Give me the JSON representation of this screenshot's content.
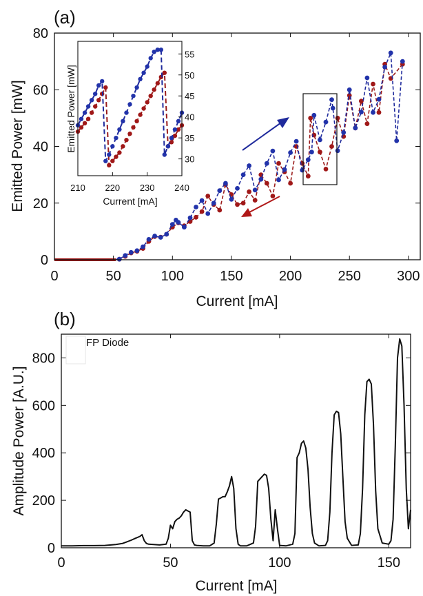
{
  "colors": {
    "up": "#1f2a9c",
    "down": "#9a1b1b",
    "dot_up": "#2233aa",
    "dot_down": "#a01818",
    "line_b": "#111111",
    "arrow_up": "#1f2a9c",
    "arrow_down": "#b01818"
  },
  "chart_data": [
    {
      "panel": "(a)",
      "type": "scatter",
      "xlabel": "Current [mA]",
      "ylabel": "Emitted Power [mW]",
      "xlim": [
        0,
        310
      ],
      "ylim": [
        0,
        80
      ],
      "xticks": [
        "0",
        "50",
        "100",
        "150",
        "200",
        "250",
        "300"
      ],
      "yticks": [
        "0",
        "20",
        "40",
        "60",
        "80"
      ],
      "series": [
        {
          "direction": "increasing current",
          "x": [
            0,
            20,
            40,
            55,
            60,
            65,
            70,
            75,
            80,
            85,
            90,
            95,
            100,
            103,
            105,
            110,
            115,
            120,
            125,
            130,
            135,
            140,
            145,
            150,
            155,
            160,
            165,
            170,
            175,
            180,
            185,
            190,
            195,
            200,
            205,
            210,
            215,
            218,
            220,
            225,
            230,
            235,
            236,
            240,
            245,
            250,
            255,
            260,
            265,
            270,
            275,
            280,
            285,
            290,
            295
          ],
          "y": [
            0,
            0,
            0,
            0.2,
            1.5,
            2.6,
            3.2,
            4.6,
            7.2,
            8.4,
            7.9,
            9.0,
            12.5,
            14.0,
            13.2,
            11.5,
            14.8,
            18.6,
            20.9,
            16.3,
            20.0,
            24.4,
            27.0,
            21.3,
            25.2,
            30.0,
            33.2,
            24.6,
            28.4,
            34.0,
            38.4,
            28.2,
            31.8,
            37.8,
            41.8,
            31.6,
            35.3,
            38.0,
            51.0,
            42.3,
            48.6,
            56.5,
            53.5,
            38.5,
            44.9,
            60.0,
            46.5,
            52.1,
            64.2,
            52.0,
            56.6,
            68.0,
            73.0,
            42.0,
            70.0
          ]
        },
        {
          "direction": "decreasing current",
          "x": [
            295,
            285,
            280,
            275,
            270,
            265,
            260,
            255,
            250,
            245,
            240,
            235,
            230,
            225,
            220,
            217,
            215,
            210,
            205,
            200,
            195,
            190,
            185,
            180,
            175,
            170,
            165,
            160,
            155,
            150,
            145,
            140,
            135,
            130,
            125,
            120,
            115,
            110,
            105,
            100,
            95,
            90,
            85,
            80,
            75,
            70,
            65,
            60,
            55,
            40,
            20,
            0
          ],
          "y": [
            69.0,
            64.0,
            69.0,
            52.0,
            62.0,
            48.0,
            56.0,
            46.5,
            58.0,
            43.5,
            50.0,
            40.0,
            32.0,
            38.0,
            44.0,
            50.0,
            29.5,
            34.0,
            40.0,
            27.0,
            31.0,
            34.0,
            22.5,
            27.0,
            30.0,
            21.0,
            24.0,
            20.0,
            19.5,
            23.0,
            26.5,
            17.5,
            19.5,
            22.5,
            17.0,
            15.0,
            13.5,
            12.0,
            13.0,
            11.5,
            9.0,
            8.0,
            8.2,
            6.5,
            4.0,
            3.0,
            2.4,
            1.2,
            0.2,
            0,
            0,
            0
          ]
        }
      ]
    },
    {
      "panel": "(a) inset",
      "type": "scatter",
      "xlabel": "Current [mA]",
      "ylabel": "Emitted Power [mW]",
      "xlim": [
        210,
        240
      ],
      "ylim": [
        26,
        58
      ],
      "xticks": [
        "210",
        "220",
        "230",
        "240"
      ],
      "yticks": [
        "30",
        "35",
        "40",
        "45",
        "50",
        "55"
      ],
      "series": [
        {
          "direction": "increasing current",
          "x": [
            210,
            211,
            212,
            213,
            214,
            215,
            216,
            217,
            218,
            219,
            220,
            221,
            222,
            223,
            224,
            225,
            226,
            227,
            228,
            229,
            230,
            231,
            232,
            233,
            234,
            235,
            236,
            237,
            238,
            239,
            240
          ],
          "y": [
            38.0,
            39.5,
            41.0,
            42.5,
            44.0,
            45.5,
            47.5,
            48.5,
            29.5,
            31.0,
            33.0,
            35.0,
            37.0,
            39.0,
            41.0,
            43.0,
            45.0,
            47.0,
            49.0,
            50.5,
            52.0,
            54.0,
            55.5,
            56.0,
            56.0,
            31.0,
            33.0,
            35.0,
            37.0,
            39.0,
            41.0
          ]
        },
        {
          "direction": "decreasing current",
          "x": [
            240,
            239,
            238,
            237,
            236,
            235,
            234,
            233,
            232,
            231,
            230,
            229,
            228,
            227,
            226,
            225,
            224,
            223,
            222,
            221,
            220,
            219,
            218,
            217,
            216,
            215,
            214,
            213,
            212,
            211,
            210
          ],
          "y": [
            38.0,
            37.0,
            35.5,
            34.0,
            33.0,
            50.5,
            49.5,
            48.0,
            46.5,
            45.0,
            43.5,
            42.0,
            40.5,
            39.0,
            37.5,
            36.0,
            34.5,
            33.0,
            31.5,
            30.5,
            29.5,
            28.5,
            47.0,
            45.5,
            44.0,
            42.5,
            41.0,
            39.5,
            38.5,
            37.5,
            36.5
          ]
        }
      ]
    },
    {
      "panel": "(b)",
      "type": "line",
      "xlabel": "Current [mA]",
      "ylabel": "Amplitude Power [A.U.]",
      "xlim": [
        0,
        160
      ],
      "ylim": [
        0,
        900
      ],
      "xticks": [
        "0",
        "50",
        "100",
        "150"
      ],
      "yticks": [
        "0",
        "200",
        "400",
        "600",
        "800"
      ],
      "legend": "FP Diode",
      "legend_position": "top-left",
      "series": [
        {
          "name": "FP Diode",
          "x": [
            0,
            5,
            10,
            15,
            20,
            25,
            28,
            30,
            32,
            34,
            36,
            37,
            38,
            39,
            40,
            45,
            48,
            49,
            50,
            51,
            52,
            53,
            54,
            55,
            56,
            57,
            58,
            59,
            60,
            61,
            62,
            65,
            68,
            70,
            71,
            72,
            73,
            74,
            75,
            76,
            77,
            78,
            79,
            80,
            81,
            82,
            85,
            88,
            89,
            90,
            91,
            92,
            93,
            94,
            95,
            96,
            97,
            98,
            99,
            100,
            103,
            106,
            107,
            108,
            109,
            110,
            111,
            112,
            113,
            114,
            115,
            116,
            118,
            121,
            122,
            123,
            124,
            125,
            126,
            127,
            128,
            129,
            130,
            131,
            133,
            136,
            137,
            138,
            139,
            140,
            141,
            142,
            143,
            144,
            145,
            147,
            150,
            151,
            152,
            153,
            154,
            155,
            156,
            157,
            158,
            159,
            160
          ],
          "y": [
            8,
            8,
            9,
            9,
            10,
            14,
            18,
            25,
            32,
            40,
            48,
            55,
            30,
            18,
            15,
            12,
            15,
            40,
            95,
            80,
            110,
            120,
            125,
            135,
            150,
            160,
            155,
            150,
            30,
            12,
            10,
            8,
            8,
            20,
            100,
            205,
            210,
            215,
            215,
            235,
            260,
            300,
            250,
            80,
            15,
            8,
            8,
            20,
            90,
            280,
            290,
            300,
            310,
            305,
            250,
            120,
            30,
            160,
            80,
            10,
            8,
            15,
            60,
            380,
            400,
            440,
            450,
            420,
            330,
            170,
            60,
            20,
            8,
            10,
            30,
            150,
            400,
            560,
            575,
            570,
            480,
            290,
            110,
            40,
            10,
            12,
            60,
            250,
            560,
            700,
            710,
            690,
            520,
            240,
            80,
            20,
            15,
            30,
            120,
            430,
            800,
            880,
            850,
            600,
            250,
            80,
            160
          ]
        }
      ]
    }
  ]
}
